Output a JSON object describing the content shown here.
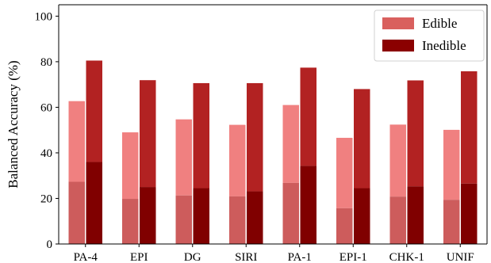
{
  "chart_data": {
    "type": "bar",
    "title": "",
    "xlabel": "",
    "ylabel": "Balanced Accuracy (%)",
    "ylim": [
      0,
      105
    ],
    "yticks": [
      0,
      20,
      40,
      60,
      80,
      100
    ],
    "grid": false,
    "legend_position": "top-right",
    "categories": [
      "PA-4",
      "EPI",
      "DG",
      "SIRI",
      "PA-1",
      "EPI-1",
      "CHK-1",
      "UNIF"
    ],
    "series": [
      {
        "name": "Edible",
        "color": "#d9605e",
        "light_color": "#f08080",
        "dark_color": "#cd5c5c",
        "total": [
          62.7,
          49.0,
          54.7,
          52.3,
          61.0,
          46.6,
          52.4,
          50.1
        ],
        "lower": [
          27.3,
          19.8,
          21.3,
          20.9,
          26.8,
          15.7,
          20.8,
          19.4
        ]
      },
      {
        "name": "Inedible",
        "color": "#8b0000",
        "light_color": "#b22222",
        "dark_color": "#800000",
        "total": [
          80.5,
          71.9,
          70.6,
          70.6,
          77.4,
          68.0,
          71.8,
          75.8
        ],
        "lower": [
          36.0,
          25.0,
          24.5,
          23.1,
          34.3,
          24.5,
          25.3,
          26.5
        ]
      }
    ]
  }
}
